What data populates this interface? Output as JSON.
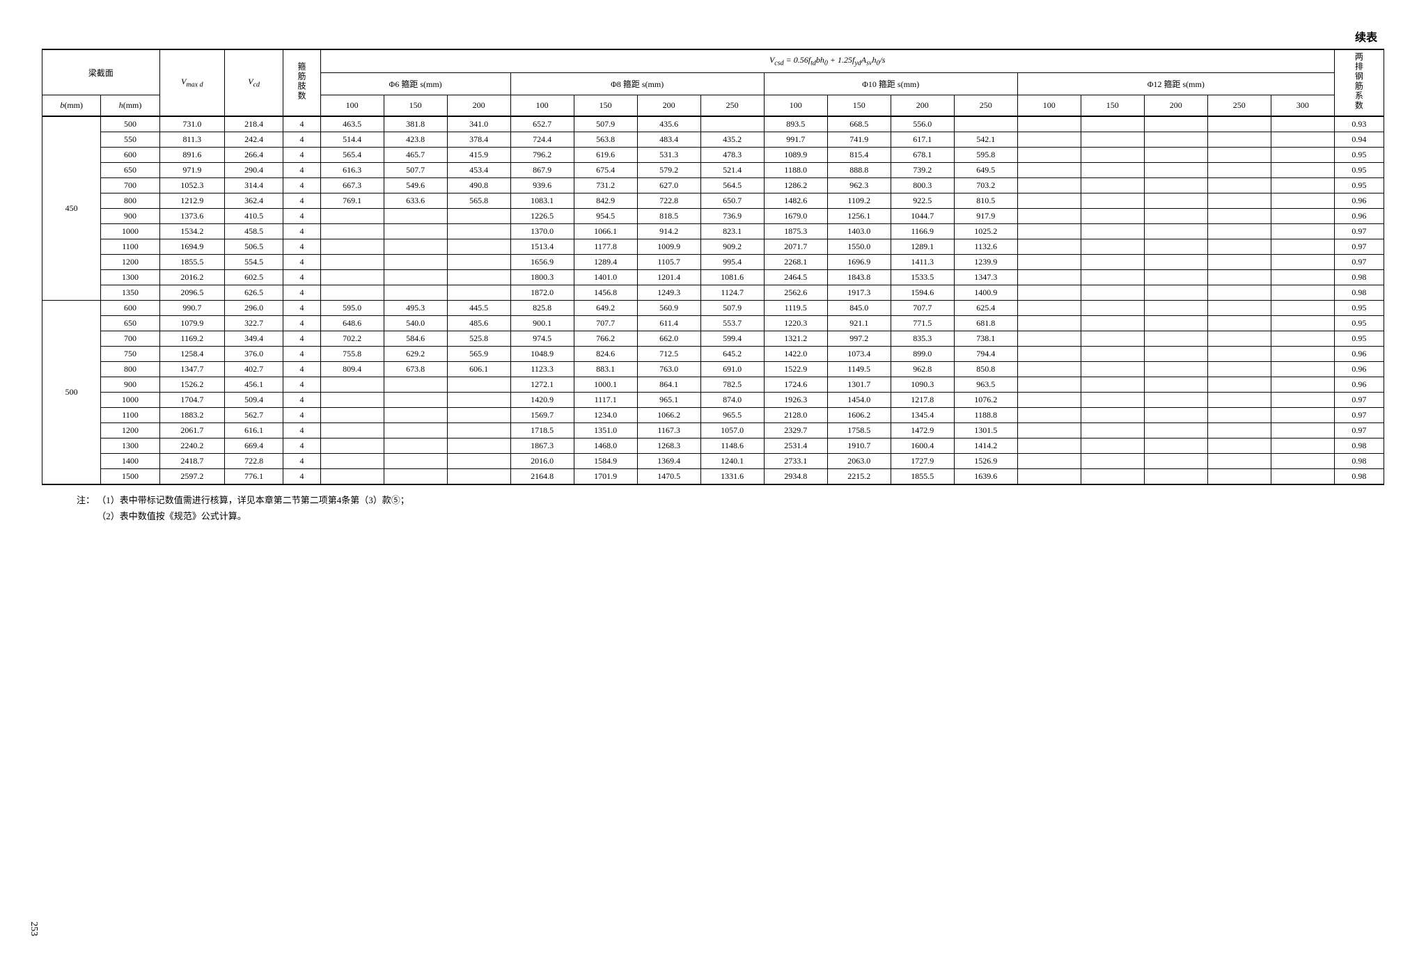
{
  "continued_label": "续表",
  "page_number": "253",
  "header": {
    "section": "梁截面",
    "b": "b(mm)",
    "h": "h(mm)",
    "vmaxd": "V_max d",
    "vcd": "V_cd",
    "legs": "箍筋肢数",
    "formula": "V_csd = 0.56 f_td b h_0 + 1.25 f_yd A_sv h_0 / s",
    "d6": "Φ6 箍距 s(mm)",
    "d8": "Φ8 箍距 s(mm)",
    "d10": "Φ10 箍距 s(mm)",
    "d12": "Φ12 箍距 s(mm)",
    "coef": "两排钢筋系数",
    "s": {
      "100": "100",
      "150": "150",
      "200": "200",
      "250": "250",
      "300": "300"
    }
  },
  "groups": [
    {
      "b": "450",
      "rows": [
        {
          "h": "500",
          "vmax": "731.0",
          "vcd": "218.4",
          "legs": "4",
          "d6": [
            "463.5",
            "381.8",
            "341.0"
          ],
          "d8": [
            "652.7",
            "507.9",
            "435.6",
            ""
          ],
          "d10": [
            "893.5",
            "668.5",
            "556.0",
            ""
          ],
          "d12": [
            "",
            "",
            "",
            "",
            ""
          ],
          "coef": "0.93"
        },
        {
          "h": "550",
          "vmax": "811.3",
          "vcd": "242.4",
          "legs": "4",
          "d6": [
            "514.4",
            "423.8",
            "378.4"
          ],
          "d8": [
            "724.4",
            "563.8",
            "483.4",
            "435.2"
          ],
          "d10": [
            "991.7",
            "741.9",
            "617.1",
            "542.1"
          ],
          "d12": [
            "",
            "",
            "",
            "",
            ""
          ],
          "coef": "0.94"
        },
        {
          "h": "600",
          "vmax": "891.6",
          "vcd": "266.4",
          "legs": "4",
          "d6": [
            "565.4",
            "465.7",
            "415.9"
          ],
          "d8": [
            "796.2",
            "619.6",
            "531.3",
            "478.3"
          ],
          "d10": [
            "1089.9",
            "815.4",
            "678.1",
            "595.8"
          ],
          "d12": [
            "",
            "",
            "",
            "",
            ""
          ],
          "coef": "0.95"
        },
        {
          "h": "650",
          "vmax": "971.9",
          "vcd": "290.4",
          "legs": "4",
          "d6": [
            "616.3",
            "507.7",
            "453.4"
          ],
          "d8": [
            "867.9",
            "675.4",
            "579.2",
            "521.4"
          ],
          "d10": [
            "1188.0",
            "888.8",
            "739.2",
            "649.5"
          ],
          "d12": [
            "",
            "",
            "",
            "",
            ""
          ],
          "coef": "0.95"
        },
        {
          "h": "700",
          "vmax": "1052.3",
          "vcd": "314.4",
          "legs": "4",
          "d6": [
            "667.3",
            "549.6",
            "490.8"
          ],
          "d8": [
            "939.6",
            "731.2",
            "627.0",
            "564.5"
          ],
          "d10": [
            "1286.2",
            "962.3",
            "800.3",
            "703.2"
          ],
          "d12": [
            "",
            "",
            "",
            "",
            ""
          ],
          "coef": "0.95"
        },
        {
          "h": "800",
          "vmax": "1212.9",
          "vcd": "362.4",
          "legs": "4",
          "d6": [
            "769.1",
            "633.6",
            "565.8"
          ],
          "d8": [
            "1083.1",
            "842.9",
            "722.8",
            "650.7"
          ],
          "d10": [
            "1482.6",
            "1109.2",
            "922.5",
            "810.5"
          ],
          "d12": [
            "",
            "",
            "",
            "",
            ""
          ],
          "coef": "0.96"
        },
        {
          "h": "900",
          "vmax": "1373.6",
          "vcd": "410.5",
          "legs": "4",
          "d6": [
            "",
            "",
            ""
          ],
          "d8": [
            "1226.5",
            "954.5",
            "818.5",
            "736.9"
          ],
          "d10": [
            "1679.0",
            "1256.1",
            "1044.7",
            "917.9"
          ],
          "d12": [
            "",
            "",
            "",
            "",
            ""
          ],
          "coef": "0.96"
        },
        {
          "h": "1000",
          "vmax": "1534.2",
          "vcd": "458.5",
          "legs": "4",
          "d6": [
            "",
            "",
            ""
          ],
          "d8": [
            "1370.0",
            "1066.1",
            "914.2",
            "823.1"
          ],
          "d10": [
            "1875.3",
            "1403.0",
            "1166.9",
            "1025.2"
          ],
          "d12": [
            "",
            "",
            "",
            "",
            ""
          ],
          "coef": "0.97"
        },
        {
          "h": "1100",
          "vmax": "1694.9",
          "vcd": "506.5",
          "legs": "4",
          "d6": [
            "",
            "",
            ""
          ],
          "d8": [
            "1513.4",
            "1177.8",
            "1009.9",
            "909.2"
          ],
          "d10": [
            "2071.7",
            "1550.0",
            "1289.1",
            "1132.6"
          ],
          "d12": [
            "",
            "",
            "",
            "",
            ""
          ],
          "coef": "0.97"
        },
        {
          "h": "1200",
          "vmax": "1855.5",
          "vcd": "554.5",
          "legs": "4",
          "d6": [
            "",
            "",
            ""
          ],
          "d8": [
            "1656.9",
            "1289.4",
            "1105.7",
            "995.4"
          ],
          "d10": [
            "2268.1",
            "1696.9",
            "1411.3",
            "1239.9"
          ],
          "d12": [
            "",
            "",
            "",
            "",
            ""
          ],
          "coef": "0.97"
        },
        {
          "h": "1300",
          "vmax": "2016.2",
          "vcd": "602.5",
          "legs": "4",
          "d6": [
            "",
            "",
            ""
          ],
          "d8": [
            "1800.3",
            "1401.0",
            "1201.4",
            "1081.6"
          ],
          "d10": [
            "2464.5",
            "1843.8",
            "1533.5",
            "1347.3"
          ],
          "d12": [
            "",
            "",
            "",
            "",
            ""
          ],
          "coef": "0.98"
        },
        {
          "h": "1350",
          "vmax": "2096.5",
          "vcd": "626.5",
          "legs": "4",
          "d6": [
            "",
            "",
            ""
          ],
          "d8": [
            "1872.0",
            "1456.8",
            "1249.3",
            "1124.7"
          ],
          "d10": [
            "2562.6",
            "1917.3",
            "1594.6",
            "1400.9"
          ],
          "d12": [
            "",
            "",
            "",
            "",
            ""
          ],
          "coef": "0.98"
        }
      ]
    },
    {
      "b": "500",
      "rows": [
        {
          "h": "600",
          "vmax": "990.7",
          "vcd": "296.0",
          "legs": "4",
          "d6": [
            "595.0",
            "495.3",
            "445.5"
          ],
          "d8": [
            "825.8",
            "649.2",
            "560.9",
            "507.9"
          ],
          "d10": [
            "1119.5",
            "845.0",
            "707.7",
            "625.4"
          ],
          "d12": [
            "",
            "",
            "",
            "",
            ""
          ],
          "coef": "0.95"
        },
        {
          "h": "650",
          "vmax": "1079.9",
          "vcd": "322.7",
          "legs": "4",
          "d6": [
            "648.6",
            "540.0",
            "485.6"
          ],
          "d8": [
            "900.1",
            "707.7",
            "611.4",
            "553.7"
          ],
          "d10": [
            "1220.3",
            "921.1",
            "771.5",
            "681.8"
          ],
          "d12": [
            "",
            "",
            "",
            "",
            ""
          ],
          "coef": "0.95"
        },
        {
          "h": "700",
          "vmax": "1169.2",
          "vcd": "349.4",
          "legs": "4",
          "d6": [
            "702.2",
            "584.6",
            "525.8"
          ],
          "d8": [
            "974.5",
            "766.2",
            "662.0",
            "599.4"
          ],
          "d10": [
            "1321.2",
            "997.2",
            "835.3",
            "738.1"
          ],
          "d12": [
            "",
            "",
            "",
            "",
            ""
          ],
          "coef": "0.95"
        },
        {
          "h": "750",
          "vmax": "1258.4",
          "vcd": "376.0",
          "legs": "4",
          "d6": [
            "755.8",
            "629.2",
            "565.9"
          ],
          "d8": [
            "1048.9",
            "824.6",
            "712.5",
            "645.2"
          ],
          "d10": [
            "1422.0",
            "1073.4",
            "899.0",
            "794.4"
          ],
          "d12": [
            "",
            "",
            "",
            "",
            ""
          ],
          "coef": "0.96"
        },
        {
          "h": "800",
          "vmax": "1347.7",
          "vcd": "402.7",
          "legs": "4",
          "d6": [
            "809.4",
            "673.8",
            "606.1"
          ],
          "d8": [
            "1123.3",
            "883.1",
            "763.0",
            "691.0"
          ],
          "d10": [
            "1522.9",
            "1149.5",
            "962.8",
            "850.8"
          ],
          "d12": [
            "",
            "",
            "",
            "",
            ""
          ],
          "coef": "0.96"
        },
        {
          "h": "900",
          "vmax": "1526.2",
          "vcd": "456.1",
          "legs": "4",
          "d6": [
            "",
            "",
            ""
          ],
          "d8": [
            "1272.1",
            "1000.1",
            "864.1",
            "782.5"
          ],
          "d10": [
            "1724.6",
            "1301.7",
            "1090.3",
            "963.5"
          ],
          "d12": [
            "",
            "",
            "",
            "",
            ""
          ],
          "coef": "0.96"
        },
        {
          "h": "1000",
          "vmax": "1704.7",
          "vcd": "509.4",
          "legs": "4",
          "d6": [
            "",
            "",
            ""
          ],
          "d8": [
            "1420.9",
            "1117.1",
            "965.1",
            "874.0"
          ],
          "d10": [
            "1926.3",
            "1454.0",
            "1217.8",
            "1076.2"
          ],
          "d12": [
            "",
            "",
            "",
            "",
            ""
          ],
          "coef": "0.97"
        },
        {
          "h": "1100",
          "vmax": "1883.2",
          "vcd": "562.7",
          "legs": "4",
          "d6": [
            "",
            "",
            ""
          ],
          "d8": [
            "1569.7",
            "1234.0",
            "1066.2",
            "965.5"
          ],
          "d10": [
            "2128.0",
            "1606.2",
            "1345.4",
            "1188.8"
          ],
          "d12": [
            "",
            "",
            "",
            "",
            ""
          ],
          "coef": "0.97"
        },
        {
          "h": "1200",
          "vmax": "2061.7",
          "vcd": "616.1",
          "legs": "4",
          "d6": [
            "",
            "",
            ""
          ],
          "d8": [
            "1718.5",
            "1351.0",
            "1167.3",
            "1057.0"
          ],
          "d10": [
            "2329.7",
            "1758.5",
            "1472.9",
            "1301.5"
          ],
          "d12": [
            "",
            "",
            "",
            "",
            ""
          ],
          "coef": "0.97"
        },
        {
          "h": "1300",
          "vmax": "2240.2",
          "vcd": "669.4",
          "legs": "4",
          "d6": [
            "",
            "",
            ""
          ],
          "d8": [
            "1867.3",
            "1468.0",
            "1268.3",
            "1148.6"
          ],
          "d10": [
            "2531.4",
            "1910.7",
            "1600.4",
            "1414.2"
          ],
          "d12": [
            "",
            "",
            "",
            "",
            ""
          ],
          "coef": "0.98"
        },
        {
          "h": "1400",
          "vmax": "2418.7",
          "vcd": "722.8",
          "legs": "4",
          "d6": [
            "",
            "",
            ""
          ],
          "d8": [
            "2016.0",
            "1584.9",
            "1369.4",
            "1240.1"
          ],
          "d10": [
            "2733.1",
            "2063.0",
            "1727.9",
            "1526.9"
          ],
          "d12": [
            "",
            "",
            "",
            "",
            ""
          ],
          "coef": "0.98"
        },
        {
          "h": "1500",
          "vmax": "2597.2",
          "vcd": "776.1",
          "legs": "4",
          "d6": [
            "",
            "",
            ""
          ],
          "d8": [
            "2164.8",
            "1701.9",
            "1470.5",
            "1331.6"
          ],
          "d10": [
            "2934.8",
            "2215.2",
            "1855.5",
            "1639.6"
          ],
          "d12": [
            "",
            "",
            "",
            "",
            ""
          ],
          "coef": "0.98"
        }
      ]
    }
  ],
  "notes": {
    "label": "注：",
    "n1": "（1）表中带标记数值需进行核算，详见本章第二节第二项第4条第（3）款⑤；",
    "n2": "（2）表中数值按《规范》公式计算。"
  }
}
